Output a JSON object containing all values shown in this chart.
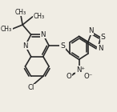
{
  "background_color": "#f0ede4",
  "bond_color": "#2a2a2a",
  "bond_width": 1.2,
  "figsize": [
    1.46,
    1.4
  ],
  "dpi": 100,
  "xlim": [
    0,
    10
  ],
  "ylim": [
    0,
    9.6
  ]
}
